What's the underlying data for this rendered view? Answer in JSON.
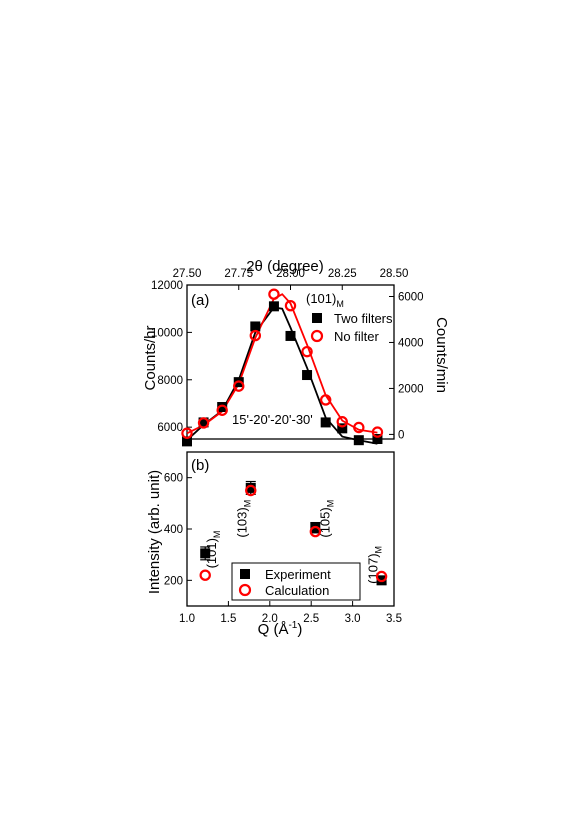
{
  "chart_data": [
    {
      "panel_label": "(a)",
      "type": "scatter",
      "top_xlabel": "2θ (degree)",
      "top_xticks": [
        "27.50",
        "27.75",
        "28.00",
        "28.25",
        "28.50"
      ],
      "top_xlim": [
        27.5,
        28.5
      ],
      "ylabel_left": "Counts/hr",
      "ylabel_right": "Counts/min",
      "ylim_left": [
        5500,
        12000
      ],
      "yticks_left": [
        "6000",
        "8000",
        "10000",
        "12000"
      ],
      "ylim_right": [
        -200,
        6500
      ],
      "yticks_right": [
        "0",
        "2000",
        "4000",
        "6000"
      ],
      "peak_label": "(101)",
      "peak_label_sub": "M",
      "annotation": "15'-20'-20'-30'",
      "legend_position": "top-right",
      "series": [
        {
          "name": "Two filters",
          "marker": "filled-square",
          "color": "#000000",
          "axis": "left",
          "x": [
            27.5,
            27.58,
            27.67,
            27.75,
            27.83,
            27.92,
            28.0,
            28.08,
            28.17,
            28.25,
            28.33,
            28.42
          ],
          "y": [
            5400,
            6200,
            6850,
            7900,
            10250,
            11100,
            9850,
            8200,
            6200,
            5950,
            5450,
            5500
          ],
          "fit": [
            [
              27.5,
              5450
            ],
            [
              27.58,
              6100
            ],
            [
              27.67,
              6700
            ],
            [
              27.75,
              8000
            ],
            [
              27.83,
              10000
            ],
            [
              27.92,
              11050
            ],
            [
              27.96,
              11000
            ],
            [
              28.0,
              10200
            ],
            [
              28.08,
              8500
            ],
            [
              28.17,
              6400
            ],
            [
              28.25,
              5600
            ],
            [
              28.33,
              5450
            ],
            [
              28.42,
              5300
            ]
          ]
        },
        {
          "name": "No filter",
          "marker": "open-circle",
          "color": "#ff0000",
          "axis": "right",
          "x": [
            27.5,
            27.58,
            27.67,
            27.75,
            27.83,
            27.92,
            28.0,
            28.08,
            28.17,
            28.25,
            28.33,
            28.42
          ],
          "y": [
            50,
            500,
            1050,
            2100,
            4300,
            6100,
            5600,
            3600,
            1500,
            550,
            300,
            100
          ],
          "fit": [
            [
              27.5,
              50
            ],
            [
              27.58,
              400
            ],
            [
              27.67,
              1000
            ],
            [
              27.75,
              2200
            ],
            [
              27.83,
              4200
            ],
            [
              27.92,
              5900
            ],
            [
              27.96,
              6100
            ],
            [
              28.0,
              5700
            ],
            [
              28.08,
              3900
            ],
            [
              28.17,
              1700
            ],
            [
              28.25,
              600
            ],
            [
              28.33,
              200
            ],
            [
              28.42,
              80
            ]
          ]
        }
      ]
    },
    {
      "panel_label": "(b)",
      "type": "scatter",
      "xlabel": "Q (Å",
      "xlabel_sup": "-1",
      "xlabel_tail": ")",
      "xlim": [
        1.0,
        3.5
      ],
      "xticks": [
        "1.0",
        "1.5",
        "2.0",
        "2.5",
        "3.0",
        "3.5"
      ],
      "ylabel": "Intensity (arb. unit)",
      "ylim": [
        100,
        700
      ],
      "yticks": [
        "200",
        "400",
        "600"
      ],
      "legend_position": "bottom-center",
      "peak_labels": [
        {
          "text": "(101)",
          "sub": "M",
          "x": 1.35,
          "y": 320
        },
        {
          "text": "(103)",
          "sub": "M",
          "x": 1.72,
          "y": 440
        },
        {
          "text": "(105)",
          "sub": "M",
          "x": 2.72,
          "y": 440
        },
        {
          "text": "(107)",
          "sub": "M",
          "x": 3.3,
          "y": 260
        }
      ],
      "series": [
        {
          "name": "Experiment",
          "marker": "filled-square",
          "color": "#000000",
          "x": [
            1.22,
            1.77,
            2.55,
            3.35
          ],
          "y": [
            305,
            560,
            405,
            200
          ],
          "err": [
            25,
            25,
            20,
            15
          ]
        },
        {
          "name": "Calculation",
          "marker": "open-circle",
          "color": "#ff0000",
          "x": [
            1.22,
            1.77,
            2.55,
            3.35
          ],
          "y": [
            220,
            550,
            390,
            215
          ]
        }
      ]
    }
  ]
}
